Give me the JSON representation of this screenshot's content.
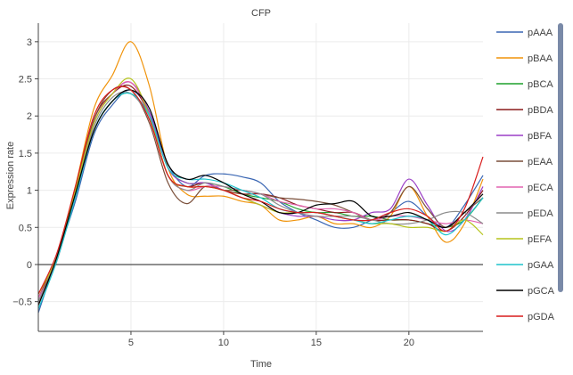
{
  "chart_data": {
    "type": "line",
    "title": "CFP",
    "xlabel": "Time",
    "ylabel": "Expression rate",
    "xlim": [
      0,
      24
    ],
    "ylim": [
      -0.9,
      3.25
    ],
    "x_ticks": [
      5,
      10,
      15,
      20
    ],
    "x_tick_labels": [
      "5",
      "10",
      "15",
      "20"
    ],
    "y_ticks": [
      -0.5,
      0,
      0.5,
      1,
      1.5,
      2,
      2.5,
      3
    ],
    "y_tick_labels": [
      "−0.5",
      "0",
      "0.5",
      "1",
      "1.5",
      "2",
      "2.5",
      "3"
    ],
    "grid": true,
    "legend_position": "right",
    "zero_line": true,
    "x": [
      0,
      1,
      2,
      3,
      4,
      5,
      6,
      7,
      8,
      9,
      10,
      11,
      12,
      13,
      14,
      15,
      16,
      17,
      18,
      19,
      20,
      21,
      22,
      23,
      24
    ],
    "series": [
      {
        "name": "pAAA",
        "color": "#3a66b3",
        "values": [
          -0.65,
          0.1,
          0.85,
          1.75,
          2.15,
          2.35,
          2.05,
          1.35,
          1.05,
          1.2,
          1.22,
          1.18,
          1.1,
          0.85,
          0.7,
          0.6,
          0.5,
          0.5,
          0.6,
          0.7,
          0.85,
          0.65,
          0.5,
          0.8,
          1.2
        ]
      },
      {
        "name": "pBAA",
        "color": "#f0930a",
        "values": [
          -0.4,
          0.1,
          1.05,
          2.1,
          2.55,
          3.0,
          2.4,
          1.3,
          0.95,
          0.92,
          0.92,
          0.85,
          0.8,
          0.6,
          0.6,
          0.65,
          0.55,
          0.55,
          0.5,
          0.65,
          1.05,
          0.65,
          0.3,
          0.55,
          1.15
        ]
      },
      {
        "name": "pBCA",
        "color": "#1fa12c",
        "values": [
          -0.5,
          0.05,
          0.95,
          1.8,
          2.2,
          2.3,
          2.0,
          1.3,
          1.1,
          1.1,
          1.05,
          0.95,
          0.9,
          0.85,
          0.75,
          0.7,
          0.7,
          0.65,
          0.65,
          0.6,
          0.6,
          0.55,
          0.5,
          0.6,
          0.9
        ]
      },
      {
        "name": "pBDA",
        "color": "#8b1a1a",
        "values": [
          -0.45,
          0.1,
          1.0,
          1.95,
          2.3,
          2.4,
          2.0,
          1.2,
          1.05,
          1.1,
          1.0,
          0.95,
          0.95,
          0.9,
          0.8,
          0.75,
          0.7,
          0.7,
          0.6,
          0.6,
          0.6,
          0.55,
          0.45,
          0.65,
          1.0
        ]
      },
      {
        "name": "pBFA",
        "color": "#9b3fc7",
        "values": [
          -0.5,
          0.1,
          1.0,
          1.9,
          2.3,
          2.45,
          2.05,
          1.3,
          1.1,
          1.1,
          1.0,
          0.9,
          0.8,
          0.7,
          0.65,
          0.65,
          0.6,
          0.6,
          0.7,
          0.75,
          1.15,
          0.8,
          0.45,
          0.6,
          1.05
        ]
      },
      {
        "name": "pEAA",
        "color": "#7a4f3a",
        "values": [
          -0.55,
          0.1,
          1.0,
          1.95,
          2.35,
          2.35,
          1.9,
          1.1,
          0.82,
          1.05,
          1.0,
          1.0,
          0.95,
          0.9,
          0.88,
          0.85,
          0.8,
          0.7,
          0.6,
          0.7,
          1.05,
          0.75,
          0.5,
          0.7,
          0.9
        ]
      },
      {
        "name": "pECA",
        "color": "#e264b0",
        "values": [
          -0.45,
          0.05,
          0.95,
          1.9,
          2.3,
          2.45,
          2.0,
          1.2,
          1.0,
          1.05,
          1.05,
          1.0,
          0.95,
          0.85,
          0.8,
          0.75,
          0.75,
          0.7,
          0.6,
          0.65,
          0.65,
          0.6,
          0.55,
          0.6,
          0.55
        ]
      },
      {
        "name": "pEDA",
        "color": "#8c8c8c",
        "values": [
          -0.5,
          0.1,
          0.95,
          1.85,
          2.25,
          2.3,
          1.95,
          1.2,
          1.0,
          1.1,
          1.05,
          1.0,
          0.95,
          0.8,
          0.7,
          0.65,
          0.65,
          0.65,
          0.6,
          0.55,
          0.55,
          0.6,
          0.7,
          0.7,
          0.55
        ]
      },
      {
        "name": "pEFA",
        "color": "#b5c41c",
        "values": [
          -0.4,
          0.1,
          1.0,
          1.9,
          2.3,
          2.5,
          2.0,
          1.2,
          1.05,
          1.05,
          1.0,
          0.9,
          0.8,
          0.7,
          0.7,
          0.7,
          0.65,
          0.6,
          0.55,
          0.55,
          0.5,
          0.5,
          0.45,
          0.6,
          0.4
        ]
      },
      {
        "name": "pGAA",
        "color": "#1ec3cc",
        "values": [
          -0.6,
          0.05,
          0.9,
          1.8,
          2.2,
          2.3,
          2.0,
          1.3,
          1.15,
          1.15,
          1.1,
          1.0,
          0.9,
          0.75,
          0.7,
          0.7,
          0.65,
          0.6,
          0.55,
          0.6,
          0.65,
          0.6,
          0.4,
          0.6,
          0.9
        ]
      },
      {
        "name": "pGCA",
        "color": "#000000",
        "values": [
          -0.55,
          0.1,
          0.95,
          1.8,
          2.2,
          2.35,
          2.1,
          1.35,
          1.15,
          1.2,
          1.1,
          0.95,
          0.85,
          0.7,
          0.7,
          0.8,
          0.82,
          0.85,
          0.65,
          0.65,
          0.7,
          0.6,
          0.5,
          0.7,
          0.95
        ]
      },
      {
        "name": "pGDA",
        "color": "#d81b1b",
        "values": [
          -0.4,
          0.15,
          1.05,
          2.0,
          2.35,
          2.35,
          1.95,
          1.2,
          1.05,
          1.05,
          1.0,
          0.9,
          0.85,
          0.75,
          0.7,
          0.7,
          0.65,
          0.6,
          0.6,
          0.7,
          0.75,
          0.65,
          0.45,
          0.75,
          1.45
        ]
      }
    ]
  }
}
